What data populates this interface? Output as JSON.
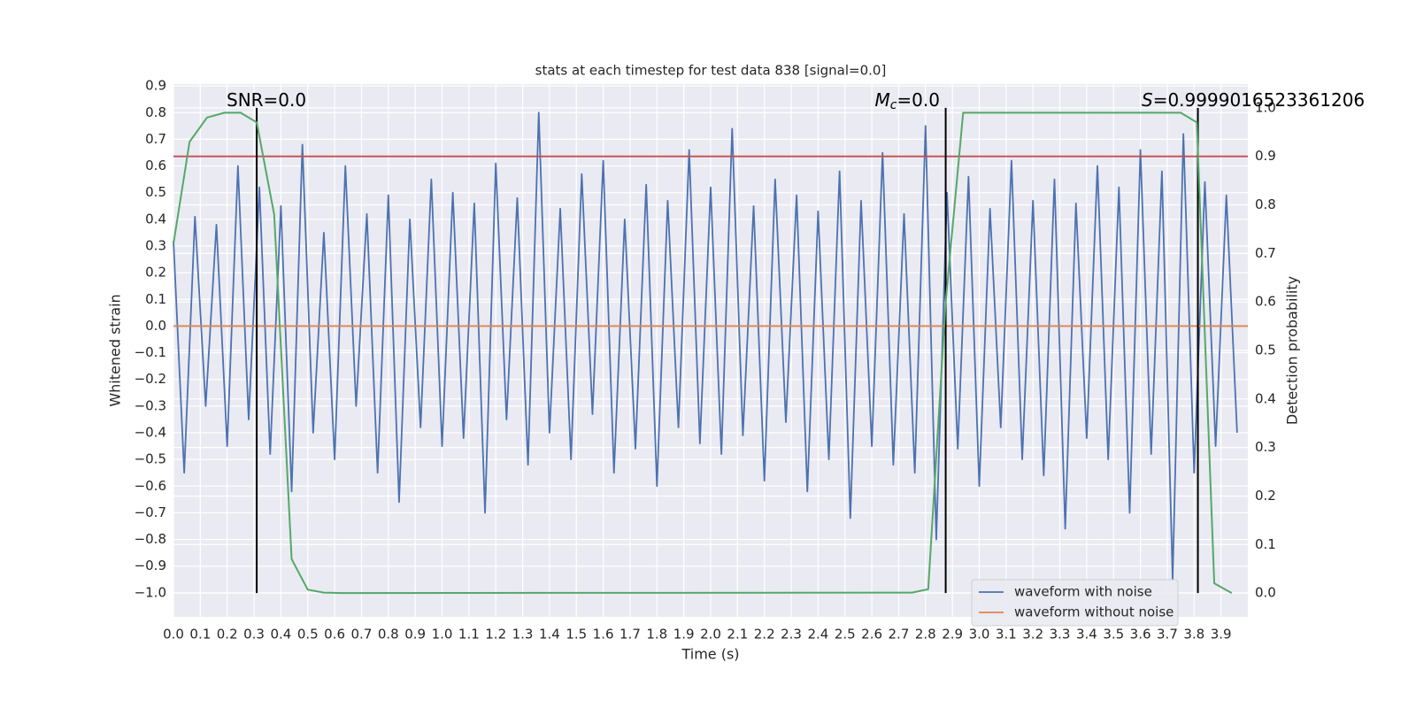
{
  "chart_data": {
    "type": "line",
    "title": "stats at each timestep for test data 838 [signal=0.0]",
    "xlabel": "Time (s)",
    "ylabel": "Whitened strain",
    "y2label": "Detection probability",
    "xlim": [
      0,
      4.0
    ],
    "ylim": [
      -1.09,
      0.907
    ],
    "y2lim": [
      -0.049,
      1.049
    ],
    "grid": true,
    "legend": "lower right",
    "xticks": [
      {
        "value": 0,
        "label": "0.0"
      },
      0.1,
      0.2,
      0.3,
      0.4,
      0.5,
      0.6,
      0.7,
      0.8,
      0.9,
      {
        "value": 1,
        "label": "1.0"
      },
      1.1,
      1.2,
      1.3,
      1.4,
      1.5,
      1.6,
      1.7,
      1.8,
      1.9,
      {
        "value": 2,
        "label": "2.0"
      },
      2.1,
      2.2,
      2.3,
      2.4,
      2.5,
      2.6,
      2.7,
      2.8,
      2.9,
      {
        "value": 3,
        "label": "3.0"
      },
      3.1,
      3.2,
      3.3,
      3.4,
      3.5,
      3.6,
      3.7,
      3.8,
      3.9
    ],
    "yticks": [
      {
        "value": -1.0,
        "label": "−1.0"
      },
      {
        "value": -0.9,
        "label": "−0.9"
      },
      {
        "value": -0.8,
        "label": "−0.8"
      },
      {
        "value": -0.7,
        "label": "−0.7"
      },
      {
        "value": -0.6,
        "label": "−0.6"
      },
      {
        "value": -0.5,
        "label": "−0.5"
      },
      {
        "value": -0.4,
        "label": "−0.4"
      },
      {
        "value": -0.3,
        "label": "−0.3"
      },
      {
        "value": -0.2,
        "label": "−0.2"
      },
      {
        "value": -0.1,
        "label": "−0.1"
      },
      {
        "value": 0,
        "label": "0.0"
      },
      0.1,
      0.2,
      0.3,
      0.4,
      0.5,
      0.6,
      0.7,
      0.8,
      0.9
    ],
    "y2ticks": [
      {
        "value": 0,
        "label": "0.0"
      },
      0.1,
      0.2,
      0.3,
      0.4,
      0.5,
      0.6,
      0.7,
      0.8,
      0.9,
      {
        "value": 1,
        "label": "1.0"
      }
    ],
    "series": [
      {
        "name": "waveform with noise",
        "color": "#4c72b0",
        "axis": "y",
        "x": [
          0,
          0.04,
          0.08,
          0.12,
          0.16,
          0.2,
          0.24,
          0.28,
          0.32,
          0.36,
          0.4,
          0.44,
          0.48,
          0.52,
          0.56,
          0.6,
          0.64,
          0.68,
          0.72,
          0.76,
          0.8,
          0.84,
          0.88,
          0.92,
          0.96,
          1.0,
          1.04,
          1.08,
          1.12,
          1.16,
          1.2,
          1.24,
          1.28,
          1.32,
          1.36,
          1.4,
          1.44,
          1.48,
          1.52,
          1.56,
          1.6,
          1.64,
          1.68,
          1.72,
          1.76,
          1.8,
          1.84,
          1.88,
          1.92,
          1.96,
          2.0,
          2.04,
          2.08,
          2.12,
          2.16,
          2.2,
          2.24,
          2.28,
          2.32,
          2.36,
          2.4,
          2.44,
          2.48,
          2.52,
          2.56,
          2.6,
          2.64,
          2.68,
          2.72,
          2.76,
          2.8,
          2.84,
          2.88,
          2.92,
          2.96,
          3.0,
          3.04,
          3.08,
          3.12,
          3.16,
          3.2,
          3.24,
          3.28,
          3.32,
          3.36,
          3.4,
          3.44,
          3.48,
          3.52,
          3.56,
          3.6,
          3.64,
          3.68,
          3.72,
          3.76,
          3.8,
          3.84,
          3.88,
          3.92,
          3.96
        ],
        "values": [
          0.32,
          -0.55,
          0.41,
          -0.3,
          0.38,
          -0.45,
          0.6,
          -0.35,
          0.52,
          -0.48,
          0.45,
          -0.62,
          0.68,
          -0.4,
          0.35,
          -0.5,
          0.6,
          -0.3,
          0.42,
          -0.55,
          0.49,
          -0.66,
          0.4,
          -0.38,
          0.55,
          -0.45,
          0.5,
          -0.42,
          0.46,
          -0.7,
          0.61,
          -0.35,
          0.48,
          -0.52,
          0.8,
          -0.4,
          0.44,
          -0.5,
          0.57,
          -0.33,
          0.62,
          -0.55,
          0.4,
          -0.46,
          0.53,
          -0.6,
          0.47,
          -0.38,
          0.66,
          -0.44,
          0.52,
          -0.48,
          0.74,
          -0.41,
          0.45,
          -0.58,
          0.55,
          -0.36,
          0.49,
          -0.62,
          0.43,
          -0.5,
          0.58,
          -0.72,
          0.47,
          -0.45,
          0.65,
          -0.52,
          0.42,
          -0.55,
          0.75,
          -0.8,
          0.5,
          -0.46,
          0.56,
          -0.6,
          0.44,
          -0.38,
          0.62,
          -0.5,
          0.47,
          -0.56,
          0.55,
          -0.76,
          0.46,
          -0.42,
          0.6,
          -0.5,
          0.52,
          -0.7,
          0.66,
          -0.48,
          0.58,
          -0.95,
          0.72,
          -0.55,
          0.54,
          -0.45,
          0.49,
          -0.4
        ]
      },
      {
        "name": "waveform without noise",
        "color": "#dd8452",
        "axis": "y",
        "x": [
          0,
          4.0
        ],
        "values": [
          0,
          0
        ]
      },
      {
        "color": "#55a868",
        "axis": "y2",
        "x": [
          0,
          0.06,
          0.125,
          0.19,
          0.25,
          0.31,
          0.375,
          0.44,
          0.5,
          0.56,
          0.625,
          2.75,
          2.81,
          2.875,
          2.94,
          3.75,
          3.81,
          3.875,
          3.94
        ],
        "values": [
          0.72,
          0.93,
          0.98,
          0.99,
          0.99,
          0.97,
          0.78,
          0.07,
          0.007,
          0.001,
          0.0,
          0.001,
          0.008,
          0.6,
          0.99,
          0.99,
          0.97,
          0.02,
          0.0
        ]
      }
    ],
    "hlines": [
      {
        "value": 0.9,
        "axis": "y2",
        "color": "#c44e52"
      }
    ],
    "vlines": {
      "values": [
        0.31,
        2.875,
        3.814
      ],
      "color": "#000000"
    },
    "annotations": [
      {
        "text": "SNR=0.0"
      },
      {
        "symbol": "M",
        "subscript": "c",
        "text": "=0.0"
      },
      {
        "symbol": "S",
        "text": "=0.9999016523361206"
      }
    ]
  }
}
